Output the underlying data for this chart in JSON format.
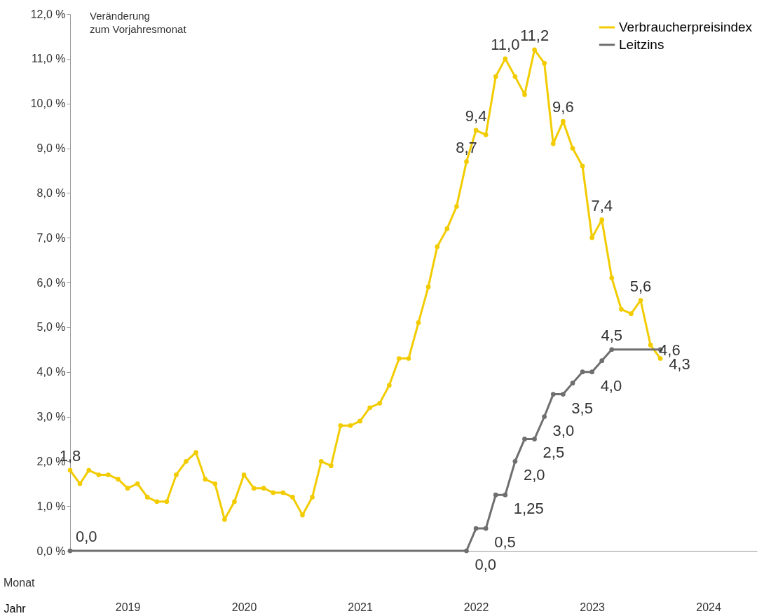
{
  "chart_data": {
    "type": "line",
    "ylabel": "Veränderung\nzum Vorjahresmonat",
    "xlabel": "Jahr",
    "annotations": [
      "Monat"
    ],
    "xlim": [
      "2019-01",
      "2024-12"
    ],
    "xticks": [
      {
        "value": "2019-07",
        "label": "2019"
      },
      {
        "value": "2020-07",
        "label": "2020"
      },
      {
        "value": "2021-07",
        "label": "2021"
      },
      {
        "value": "2022-07",
        "label": "2022"
      },
      {
        "value": "2023-07",
        "label": "2023"
      },
      {
        "value": "2024-07",
        "label": "2024"
      }
    ],
    "ylim": [
      0,
      12
    ],
    "yticks": [
      {
        "value": 0,
        "label": "0,0 %"
      },
      {
        "value": 1,
        "label": "1,0 %"
      },
      {
        "value": 2,
        "label": "2,0 %"
      },
      {
        "value": 3,
        "label": "3,0 %"
      },
      {
        "value": 4,
        "label": "4,0 %"
      },
      {
        "value": 5,
        "label": "5,0 %"
      },
      {
        "value": 6,
        "label": "6,0 %"
      },
      {
        "value": 7,
        "label": "7,0 %"
      },
      {
        "value": 8,
        "label": "8,0 %"
      },
      {
        "value": 9,
        "label": "9,0 %"
      },
      {
        "value": 10,
        "label": "10,0 %"
      },
      {
        "value": 11,
        "label": "11,0 %"
      },
      {
        "value": 12,
        "label": "12,0 %"
      }
    ],
    "grid": false,
    "legend": "top right",
    "marker": "circle",
    "line_style": "solid",
    "series": [
      {
        "name": "Verbraucherpreisindex",
        "color": "#f2cc00",
        "x": [
          "2019-01",
          "2019-02",
          "2019-03",
          "2019-04",
          "2019-05",
          "2019-06",
          "2019-07",
          "2019-08",
          "2019-09",
          "2019-10",
          "2019-11",
          "2019-12",
          "2020-01",
          "2020-02",
          "2020-03",
          "2020-04",
          "2020-05",
          "2020-06",
          "2020-07",
          "2020-08",
          "2020-09",
          "2020-10",
          "2020-11",
          "2020-12",
          "2021-01",
          "2021-02",
          "2021-03",
          "2021-04",
          "2021-05",
          "2021-06",
          "2021-07",
          "2021-08",
          "2021-09",
          "2021-10",
          "2021-11",
          "2021-12",
          "2022-01",
          "2022-02",
          "2022-03",
          "2022-04",
          "2022-05",
          "2022-06",
          "2022-07",
          "2022-08",
          "2022-09",
          "2022-10",
          "2022-11",
          "2022-12",
          "2023-01",
          "2023-02",
          "2023-03",
          "2023-04",
          "2023-05",
          "2023-06",
          "2023-07",
          "2023-08",
          "2023-09",
          "2023-10",
          "2023-11",
          "2023-12",
          "2024-01",
          "2024-02"
        ],
        "values": [
          1.8,
          1.5,
          1.8,
          1.7,
          1.7,
          1.6,
          1.4,
          1.5,
          1.2,
          1.1,
          1.1,
          1.7,
          2.0,
          2.2,
          1.6,
          1.5,
          0.7,
          1.1,
          1.7,
          1.4,
          1.4,
          1.3,
          1.3,
          1.2,
          0.8,
          1.2,
          2.0,
          1.9,
          2.8,
          2.8,
          2.9,
          3.2,
          3.3,
          3.7,
          4.3,
          4.3,
          5.1,
          5.9,
          6.8,
          7.2,
          7.7,
          8.7,
          9.4,
          9.3,
          10.6,
          11.0,
          10.6,
          10.2,
          11.2,
          10.9,
          9.1,
          9.6,
          9.0,
          8.6,
          7.0,
          7.4,
          6.1,
          5.4,
          5.3,
          5.6,
          4.6,
          4.3
        ],
        "value_labels": [
          "1,8",
          null,
          null,
          null,
          null,
          null,
          null,
          null,
          null,
          null,
          null,
          null,
          null,
          null,
          null,
          null,
          null,
          null,
          null,
          null,
          null,
          null,
          null,
          null,
          null,
          null,
          null,
          null,
          null,
          null,
          null,
          null,
          null,
          null,
          null,
          null,
          null,
          null,
          null,
          null,
          null,
          "8,7",
          "9,4",
          null,
          null,
          "11,0",
          null,
          null,
          "11,2",
          null,
          null,
          "9,6",
          null,
          null,
          null,
          "7,4",
          null,
          null,
          null,
          "5,6",
          "4,6",
          "4,3"
        ]
      },
      {
        "name": "Leitzins",
        "color": "#6f6f6f",
        "x": [
          "2019-01",
          "2022-06",
          "2022-07",
          "2022-08",
          "2022-09",
          "2022-10",
          "2022-11",
          "2022-12",
          "2023-01",
          "2023-02",
          "2023-03",
          "2023-04",
          "2023-05",
          "2023-06",
          "2023-07",
          "2023-08",
          "2023-09",
          "2024-02"
        ],
        "values": [
          0.0,
          0.0,
          0.5,
          0.5,
          1.25,
          1.25,
          2.0,
          2.5,
          2.5,
          3.0,
          3.5,
          3.5,
          3.75,
          4.0,
          4.0,
          4.25,
          4.5,
          4.5
        ],
        "value_labels": [
          "0,0",
          "0,0",
          null,
          "0,5",
          null,
          "1,25",
          "2,0",
          null,
          "2,5",
          "3,0",
          null,
          "3,5",
          null,
          null,
          "4,0",
          null,
          "4,5",
          null
        ]
      }
    ]
  }
}
